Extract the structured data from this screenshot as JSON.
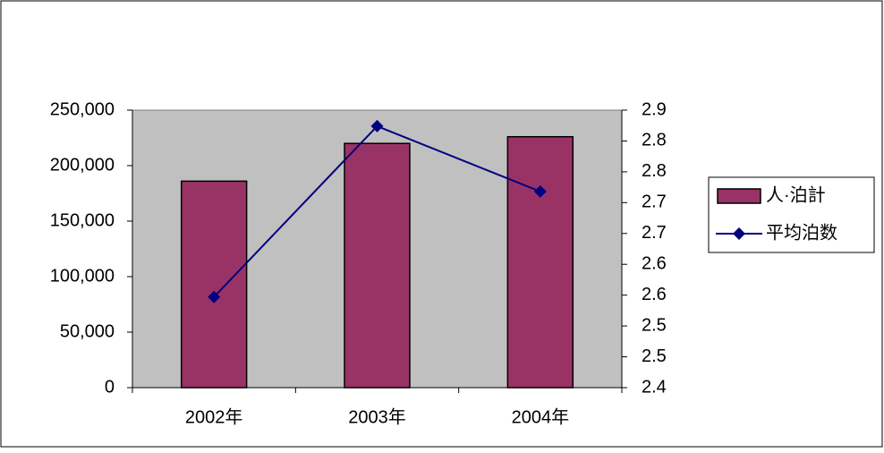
{
  "chart_data": {
    "type": "bar_line",
    "categories": [
      "2002年",
      "2003年",
      "2004年"
    ],
    "series": [
      {
        "name": "人·泊計",
        "type": "bar",
        "color": "#993366",
        "values": [
          186000,
          220000,
          226000
        ]
      },
      {
        "name": "平均泊数",
        "type": "line",
        "color": "#000080",
        "axis": "y2",
        "values": [
          2.547,
          2.824,
          2.718
        ]
      }
    ],
    "ylim": [
      0,
      250000
    ],
    "yticks": [
      0,
      {
        "value": 50000,
        "label": "50,000"
      },
      {
        "value": 100000,
        "label": "100,000"
      },
      {
        "value": 150000,
        "label": "150,000"
      },
      {
        "value": 200000,
        "label": "200,000"
      },
      {
        "value": 250000,
        "label": "250,000"
      }
    ],
    "y2lim": [
      2.4,
      2.85
    ],
    "y2ticks": [
      2.4,
      {
        "value": 2.45,
        "label": "2.5"
      },
      2.5,
      {
        "value": 2.55,
        "label": "2.6"
      },
      2.6,
      {
        "value": 2.65,
        "label": "2.7"
      },
      2.7,
      {
        "value": 2.75,
        "label": "2.8"
      },
      2.8,
      {
        "value": 2.85,
        "label": "2.9"
      }
    ],
    "plot_background": "#c0c0c0",
    "legend": "right"
  }
}
